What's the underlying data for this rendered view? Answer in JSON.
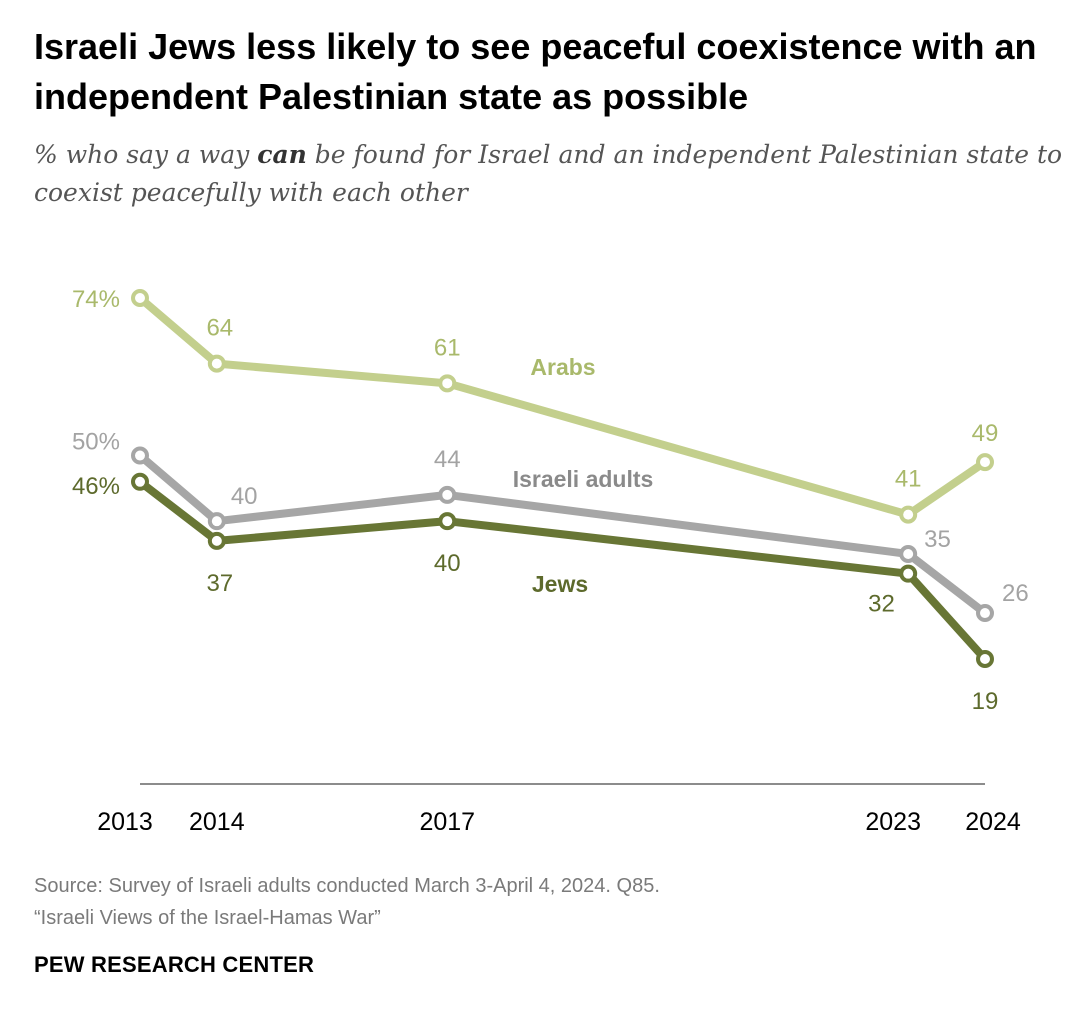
{
  "title": "Israeli Jews less likely to see peaceful coexistence with an independent Palestinian state as possible",
  "subtitle": {
    "before": "% who say a way ",
    "emphasis": "can",
    "after": " be found for Israel and an independent Palestinian state to coexist peacefully with each other"
  },
  "chart_data": {
    "type": "line",
    "x": [
      2013,
      2014,
      2017,
      2023,
      2024
    ],
    "x_tick_labels": [
      "2013",
      "2014",
      "2017",
      "2023",
      "2024"
    ],
    "xlim": [
      2013,
      2024
    ],
    "ylim": [
      0,
      85
    ],
    "grid": false,
    "legend": "inline labels",
    "series": [
      {
        "name": "Arabs",
        "values": [
          74,
          64,
          61,
          41,
          49
        ],
        "point_labels": [
          "74%",
          "64",
          "61",
          "41",
          "49"
        ],
        "color": "#c3cf8d"
      },
      {
        "name": "Israeli adults",
        "values": [
          50,
          40,
          44,
          35,
          26
        ],
        "point_labels": [
          "50%",
          "40",
          "44",
          "35",
          "26"
        ],
        "color": "#a6a6a6"
      },
      {
        "name": "Jews",
        "values": [
          46,
          37,
          40,
          32,
          19
        ],
        "point_labels": [
          "46%",
          "37",
          "40",
          "32",
          "19"
        ],
        "color": "#687635"
      }
    ]
  },
  "source_line1": "Source: Survey of Israeli adults conducted March 3-April 4, 2024. Q85.",
  "source_line2": "“Israeli Views of the Israel-Hamas War”",
  "brand": "PEW RESEARCH CENTER",
  "label_colors": {
    "Arabs": "#a9b96b",
    "Israeli adults": "#8a8a8a",
    "Jews": "#5d6a2c",
    "Arabs_values": "#a9b96b",
    "Israeli adults_values": "#a3a3a3",
    "Jews_values": "#5d6a2c"
  }
}
